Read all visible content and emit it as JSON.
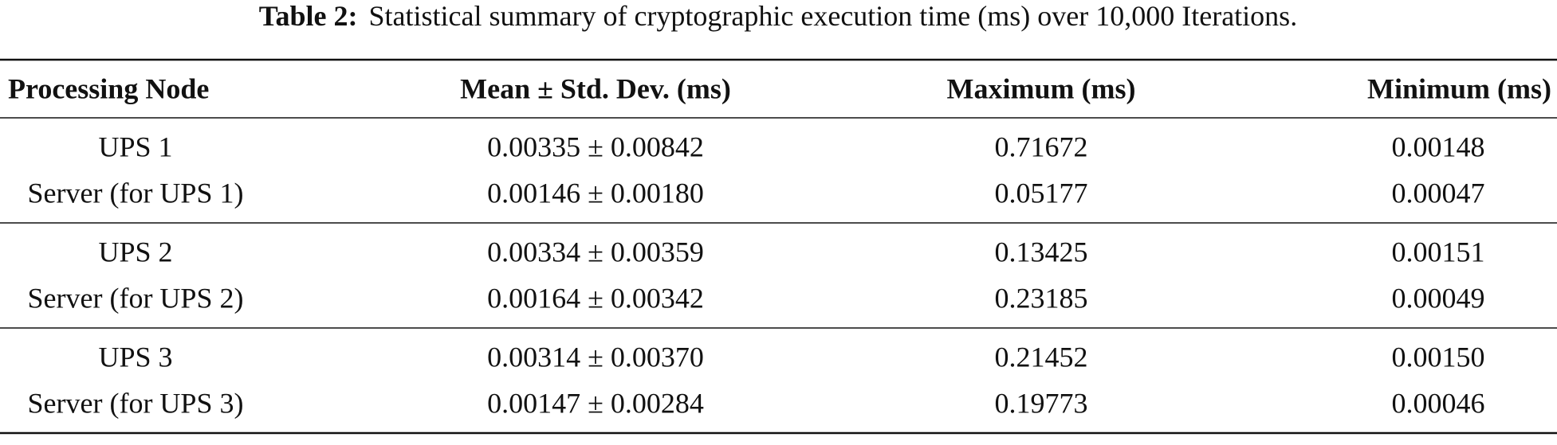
{
  "caption": {
    "label": "Table 2:",
    "text": "Statistical summary of cryptographic execution time (ms) over 10,000 Iterations."
  },
  "table": {
    "header": [
      "Processing Node",
      "Mean ± Std. Dev. (ms)",
      "Maximum (ms)",
      "Minimum (ms)"
    ],
    "groups": [
      {
        "rows": [
          [
            "UPS 1",
            "0.00335 ± 0.00842",
            "0.71672",
            "0.00148"
          ],
          [
            "Server (for UPS 1)",
            "0.00146 ± 0.00180",
            "0.05177",
            "0.00047"
          ]
        ]
      },
      {
        "rows": [
          [
            "UPS 2",
            "0.00334 ± 0.00359",
            "0.13425",
            "0.00151"
          ],
          [
            "Server (for UPS 2)",
            "0.00164 ± 0.00342",
            "0.23185",
            "0.00049"
          ]
        ]
      },
      {
        "rows": [
          [
            "UPS 3",
            "0.00314 ± 0.00370",
            "0.21452",
            "0.00150"
          ],
          [
            "Server (for UPS 3)",
            "0.00147 ± 0.00284",
            "0.19773",
            "0.00046"
          ]
        ]
      }
    ]
  }
}
